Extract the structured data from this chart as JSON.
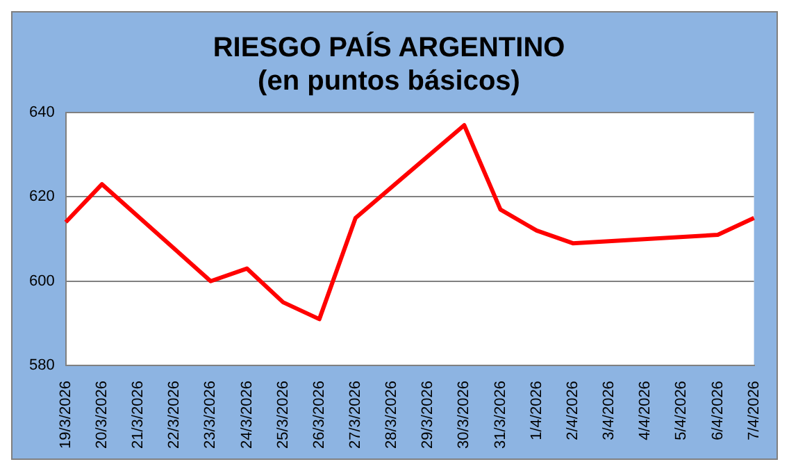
{
  "chart_data": {
    "type": "line",
    "title": "RIESGO PAÍS ARGENTINO",
    "subtitle": "(en puntos básicos)",
    "categories": [
      "19/3/2026",
      "20/3/2026",
      "21/3/2026",
      "22/3/2026",
      "23/3/2026",
      "24/3/2026",
      "25/3/2026",
      "26/3/2026",
      "27/3/2026",
      "28/3/2026",
      "29/3/2026",
      "30/3/2026",
      "31/3/2026",
      "1/4/2026",
      "2/4/2026",
      "3/4/2026",
      "4/4/2026",
      "5/4/2026",
      "6/4/2026",
      "7/4/2026"
    ],
    "series": [
      {
        "color": "#ff0000",
        "values": [
          614,
          623,
          null,
          null,
          600,
          603,
          595,
          591,
          615,
          null,
          null,
          637,
          617,
          612,
          609,
          null,
          null,
          null,
          611,
          615
        ]
      }
    ],
    "ylim": [
      580,
      640
    ],
    "yticks": [
      580,
      600,
      620,
      640
    ],
    "grid": "y",
    "legend": false,
    "marker": "none",
    "line_style": "solid"
  }
}
